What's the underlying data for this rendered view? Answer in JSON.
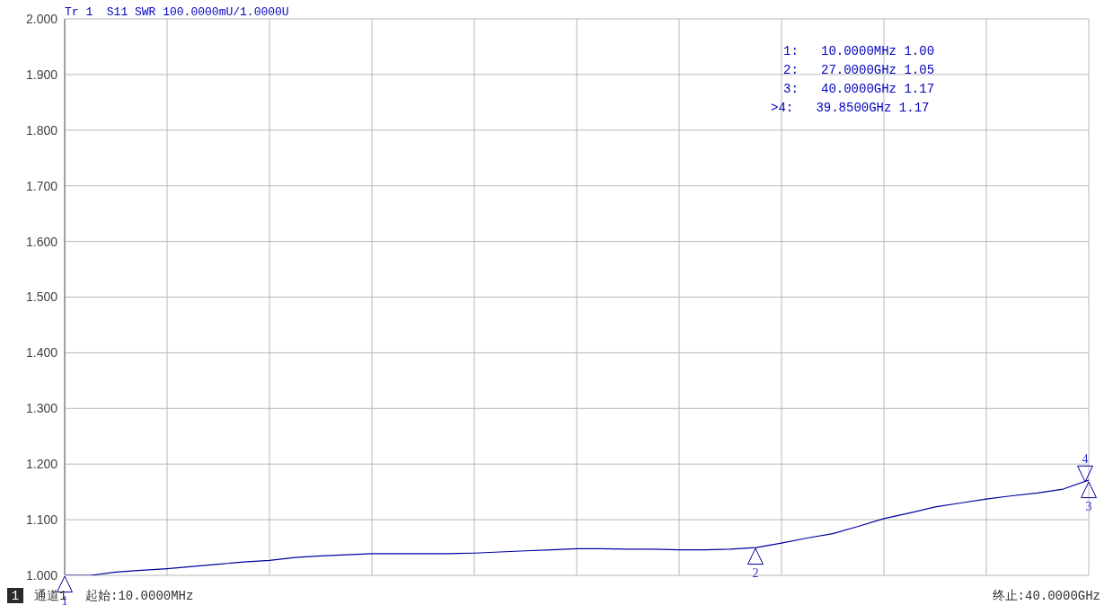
{
  "chart_data": {
    "type": "line",
    "title": "Tr 1  S11 SWR 100.0000mU/1.0000U",
    "categories": [
      null,
      null,
      null,
      null,
      null,
      null,
      null,
      null,
      null,
      null,
      null,
      null,
      null,
      null,
      null,
      null,
      null,
      null,
      null,
      null,
      null,
      null,
      null,
      null,
      null,
      null,
      null,
      null,
      null,
      null,
      null,
      null,
      null,
      null,
      null,
      null,
      null,
      null,
      null,
      null,
      null
    ],
    "series": [
      {
        "color": "#00009c",
        "values": [
          1.0,
          1.0,
          1.006,
          1.009,
          1.012,
          1.016,
          1.02,
          1.024,
          1.027,
          1.032,
          1.035,
          1.037,
          1.039,
          1.039,
          1.039,
          1.039,
          1.04,
          1.042,
          1.044,
          1.046,
          1.048,
          1.048,
          1.047,
          1.047,
          1.046,
          1.046,
          1.047,
          1.05,
          1.058,
          1.067,
          1.075,
          1.088,
          1.102,
          1.112,
          1.123,
          1.13,
          1.137,
          1.143,
          1.148,
          1.155,
          1.171
        ]
      }
    ],
    "ylim": [
      1,
      2
    ],
    "yticks": [
      {
        "value": 1,
        "label": "1.000"
      },
      {
        "value": 1.1,
        "label": "1.100"
      },
      {
        "value": 1.2,
        "label": "1.200"
      },
      {
        "value": 1.3,
        "label": "1.300"
      },
      {
        "value": 1.4,
        "label": "1.400"
      },
      {
        "value": 1.5,
        "label": "1.500"
      },
      {
        "value": 1.6,
        "label": "1.600"
      },
      {
        "value": 1.7,
        "label": "1.700"
      },
      {
        "value": 1.8,
        "label": "1.800"
      },
      {
        "value": 1.9,
        "label": "1.900"
      },
      {
        "value": 2,
        "label": "2.000"
      }
    ],
    "tick_labels": "y",
    "grid": true,
    "legend": false,
    "marker": "none",
    "line_style": "solid",
    "annotations": [
      "1",
      "2",
      "3",
      "4",
      "1:   10.0000MHz 1.00",
      "2:   27.0000GHz 1.05",
      "3:   40.0000GHz 1.17",
      ">4:   39.8500GHz 1.17",
      "1",
      "通道1",
      "起始:10.0000MHz",
      "终止:40.0000GHz"
    ]
  }
}
